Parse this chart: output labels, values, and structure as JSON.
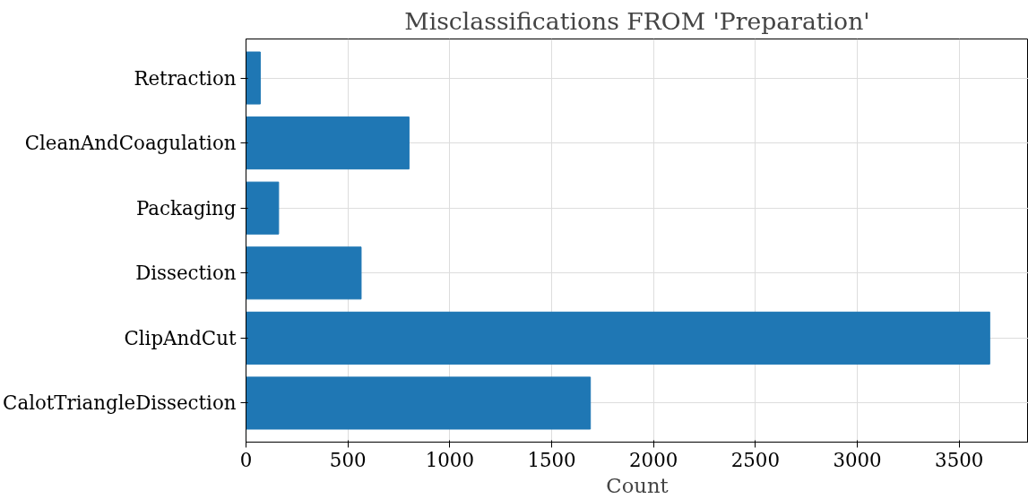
{
  "chart_data": {
    "type": "bar",
    "orientation": "horizontal",
    "title": "Misclassifications FROM 'Preparation'",
    "xlabel": "Count",
    "categories": [
      "Retraction",
      "CleanAndCoagulation",
      "Packaging",
      "Dissection",
      "ClipAndCut",
      "CalotTriangleDissection"
    ],
    "values": [
      70,
      800,
      160,
      565,
      3650,
      1690
    ],
    "color": "#1f77b4",
    "xlim": [
      0,
      3840
    ],
    "xticks": [
      0,
      500,
      1000,
      1500,
      2000,
      2500,
      3000,
      3500
    ],
    "grid": true
  }
}
